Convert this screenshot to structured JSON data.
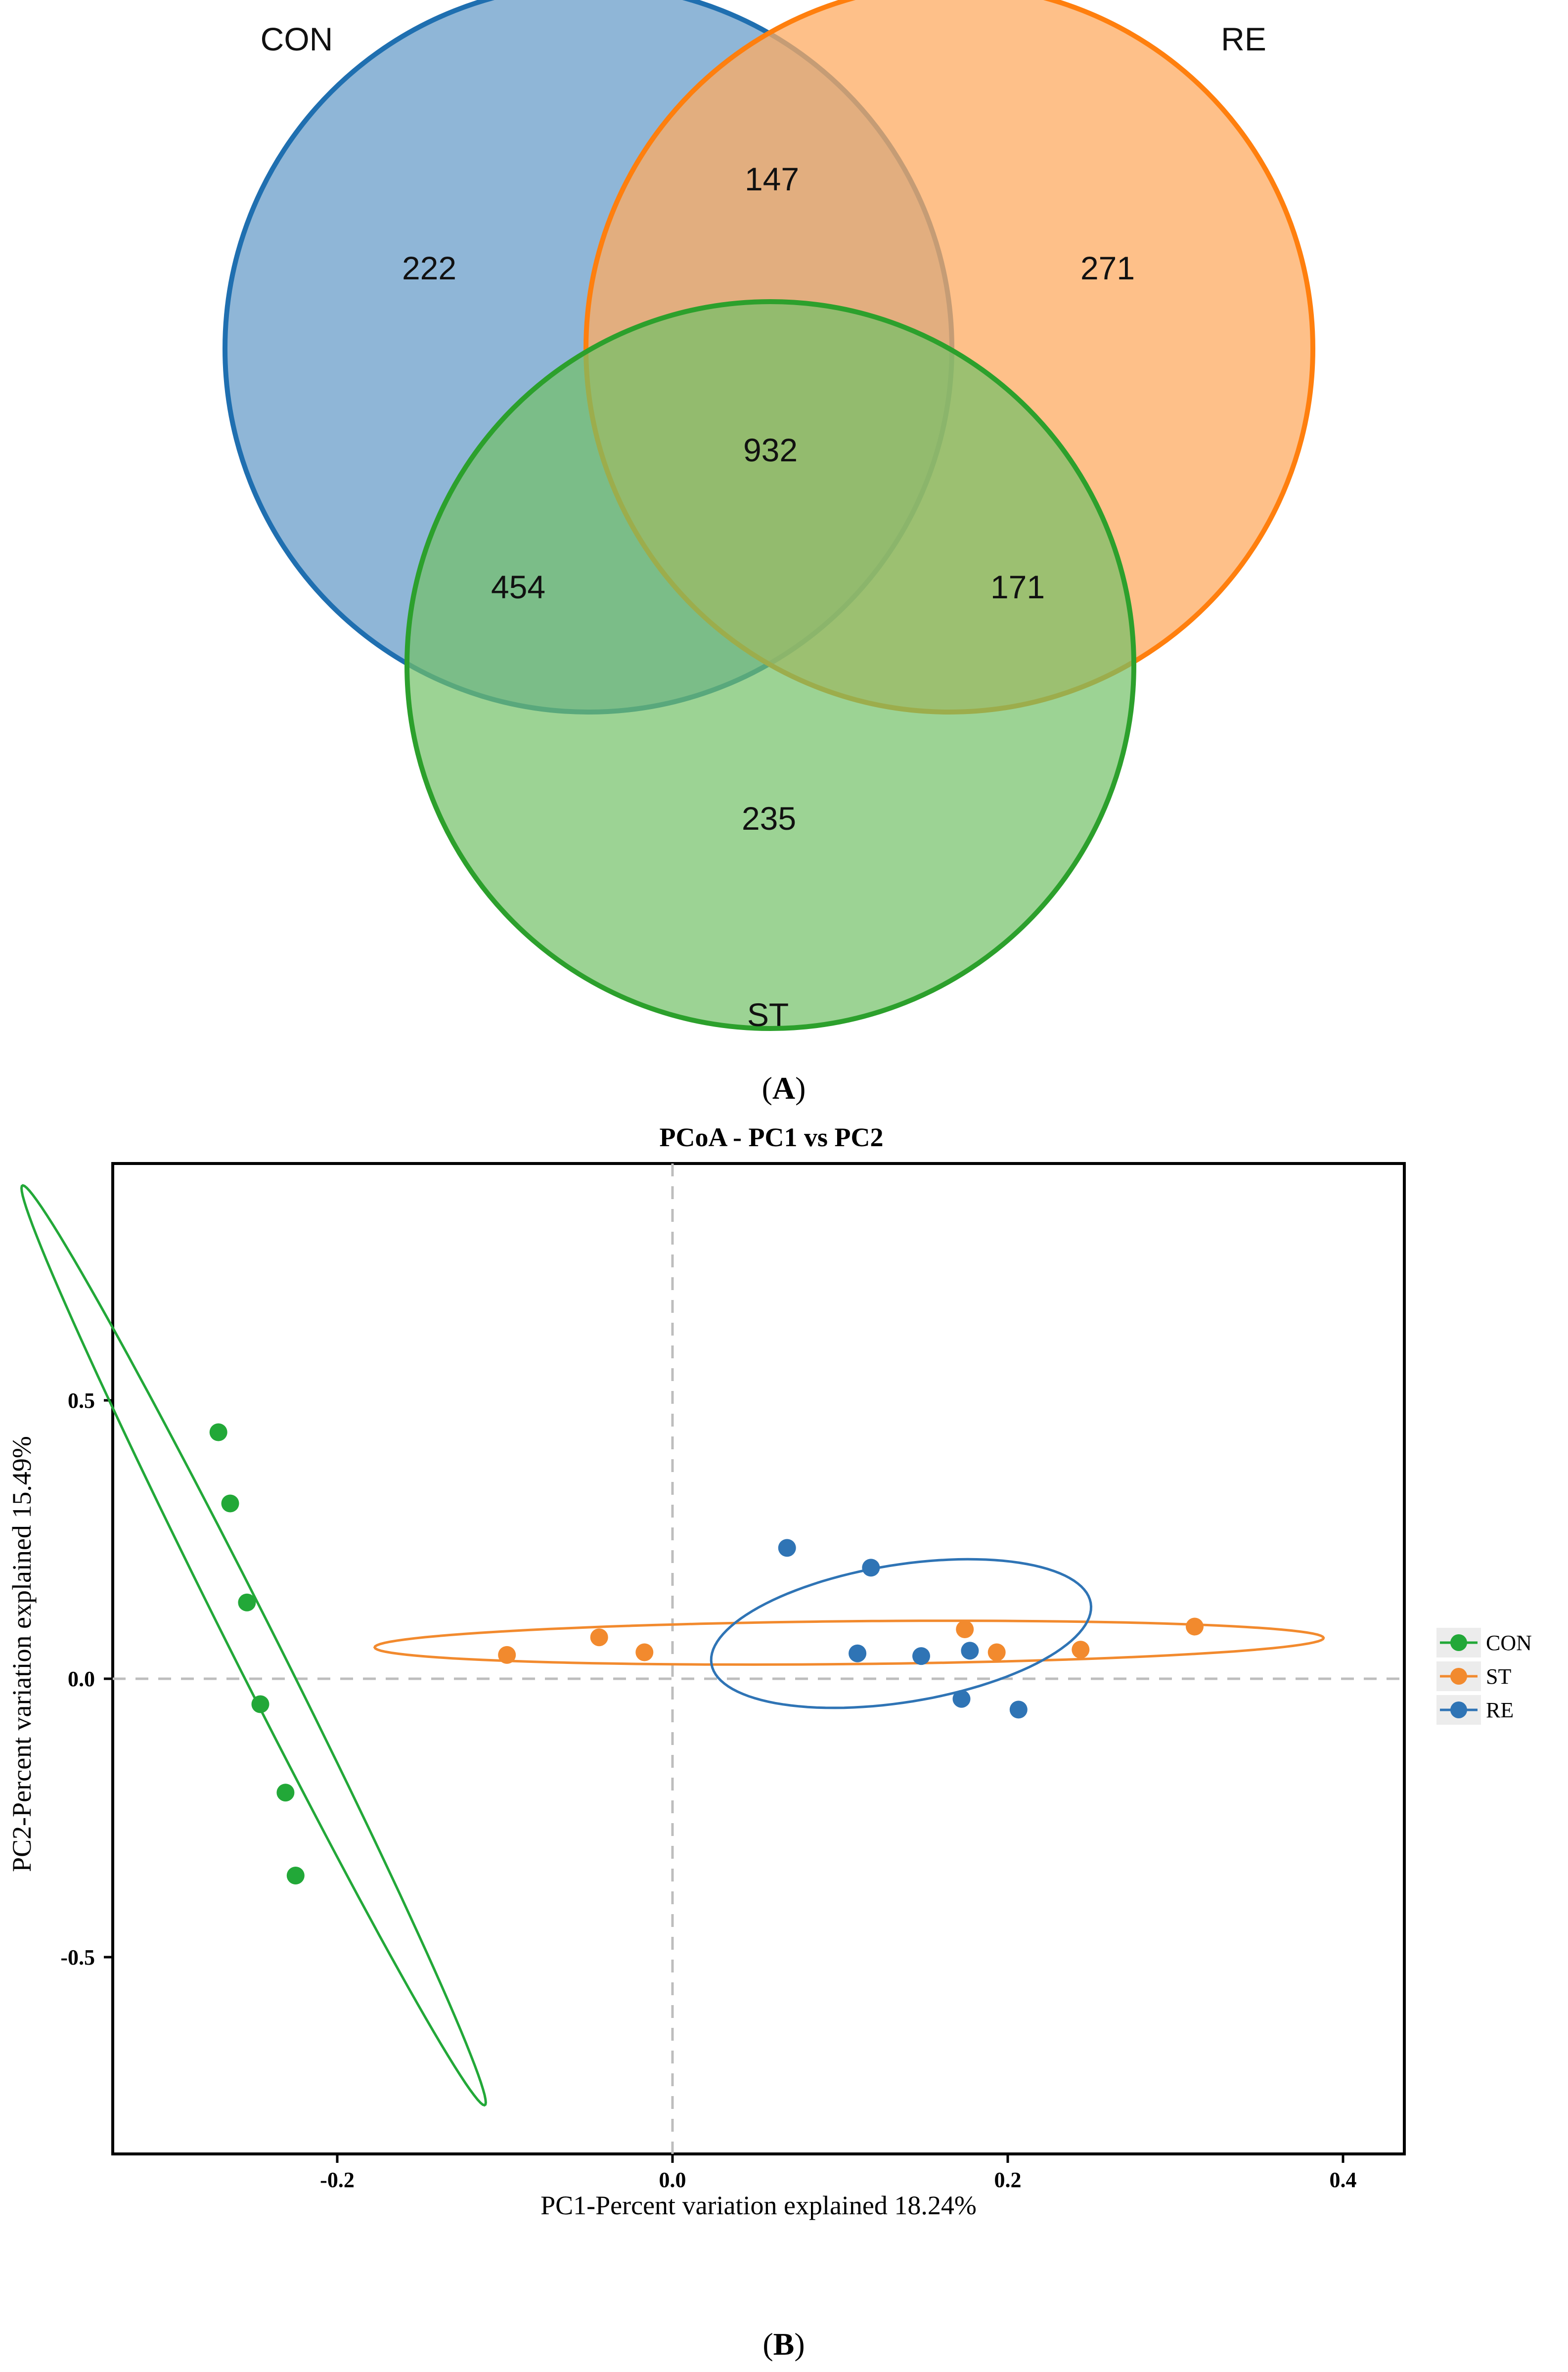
{
  "chart_data": [
    {
      "type": "venn",
      "sets": [
        {
          "name": "CON",
          "color": "#1f6fb0",
          "fill": "#5f97c6"
        },
        {
          "name": "RE",
          "color": "#ff7f0e",
          "fill": "#fdab61"
        },
        {
          "name": "ST",
          "color": "#2ca02c",
          "fill": "#72c067"
        }
      ],
      "regions": {
        "CON_only": "222",
        "RE_only": "271",
        "ST_only": "235",
        "CON_RE": "147",
        "CON_ST": "454",
        "RE_ST": "171",
        "all": "932"
      },
      "caption_open": "(",
      "caption_letter": "A",
      "caption_close": ")"
    },
    {
      "type": "scatter",
      "title": "PCoA - PC1 vs PC2",
      "xlabel": "PC1-Percent variation explained 18.24%",
      "ylabel": "PC2-Percent variation explained 15.49%",
      "xlim": [
        -0.335,
        0.435
      ],
      "ylim": [
        -0.965,
        0.885
      ],
      "xticks": [
        {
          "v": -0.2,
          "label": "-0.2"
        },
        {
          "v": 0.0,
          "label": "0.0"
        },
        {
          "v": 0.2,
          "label": "0.2"
        },
        {
          "v": 0.4,
          "label": "0.4"
        }
      ],
      "yticks": [
        {
          "v": 0.5,
          "label": "0.5"
        },
        {
          "v": 0.0,
          "label": "0.0"
        },
        {
          "v": -0.5,
          "label": "-0.5"
        }
      ],
      "reference_lines": {
        "x": 0,
        "y": 0,
        "style": "dashed"
      },
      "legend_position": "right",
      "series": [
        {
          "name": "CON",
          "color": "#22a838",
          "points": [
            [
              -0.272,
              0.383
            ],
            [
              -0.265,
              0.25
            ],
            [
              -0.255,
              0.065
            ],
            [
              -0.247,
              -0.125
            ],
            [
              -0.232,
              -0.29
            ],
            [
              -0.226,
              -0.445
            ]
          ],
          "ellipse": {
            "cx": -0.251,
            "cy": -0.015,
            "rx": 0.87,
            "ry": 0.015,
            "angle_deg": -80.9
          }
        },
        {
          "name": "ST",
          "color": "#f28a2e",
          "points": [
            [
              -0.1,
              -0.033
            ],
            [
              -0.045,
              0.0
            ],
            [
              -0.018,
              -0.028
            ],
            [
              0.173,
              0.015
            ],
            [
              0.192,
              -0.028
            ],
            [
              0.242,
              -0.023
            ],
            [
              0.31,
              0.02
            ]
          ],
          "ellipse": {
            "cx": 0.104,
            "cy": -0.01,
            "rx": 0.283,
            "ry": 0.04,
            "angle_deg": 1.8
          }
        },
        {
          "name": "RE",
          "color": "#2f74b5",
          "points": [
            [
              0.067,
              0.167
            ],
            [
              0.117,
              0.13
            ],
            [
              0.109,
              -0.03
            ],
            [
              0.147,
              -0.035
            ],
            [
              0.176,
              -0.025
            ],
            [
              0.171,
              -0.115
            ],
            [
              0.205,
              -0.135
            ]
          ],
          "ellipse": {
            "cx": 0.135,
            "cy": 0.007,
            "rx": 0.098,
            "ry": 0.15,
            "angle_deg": -30
          }
        }
      ],
      "caption_open": "(",
      "caption_letter": "B",
      "caption_close": ")"
    }
  ]
}
